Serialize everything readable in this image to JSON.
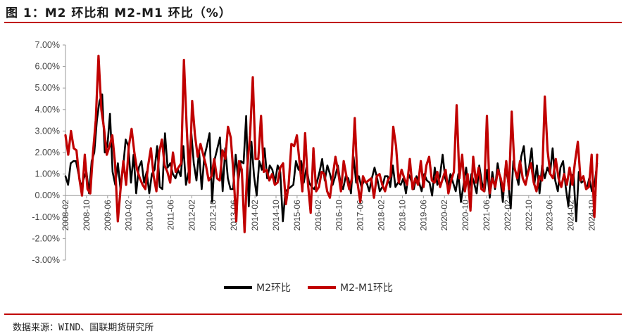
{
  "figure": {
    "title": "图 1：M2 环比和 M2-M1 环比（%）",
    "source": "数据来源：WIND、国联期货研究所"
  },
  "colors": {
    "m2": "#000000",
    "m2m1": "#c00000",
    "accent": "#c00000"
  },
  "chart_data": {
    "type": "line",
    "ylim": [
      -3,
      7
    ],
    "yticks": [
      "7.00%",
      "6.00%",
      "5.00%",
      "4.00%",
      "3.00%",
      "2.00%",
      "1.00%",
      "0.00%",
      "-1.00%",
      "-2.00%",
      "-3.00%"
    ],
    "ytick_values": [
      7,
      6,
      5,
      4,
      3,
      2,
      1,
      0,
      -1,
      -2,
      -3
    ],
    "xticks": [
      "2008-02",
      "2008-10",
      "2009-06",
      "2010-02",
      "2010-10",
      "2011-06",
      "2012-02",
      "2012-10",
      "2013-06",
      "2014-02",
      "2014-10",
      "2015-06",
      "2016-02",
      "2016-10",
      "2017-06",
      "2018-02",
      "2018-10",
      "2019-06",
      "2020-02",
      "2020-10",
      "2021-06",
      "2022-02",
      "2022-10",
      "2023-06",
      "2024-02",
      "2024-10"
    ],
    "x_start": "2008-02",
    "x_end": "2024-12",
    "legend_position": "bottom",
    "grid": false,
    "series": [
      {
        "name": "M2环比",
        "color": "#000000",
        "values": [
          0.9,
          0.5,
          1.5,
          1.6,
          1.6,
          1.0,
          0.4,
          0.8,
          1.1,
          0.1,
          1.6,
          2.0,
          3.5,
          4.4,
          4.7,
          2.0,
          2.3,
          3.8,
          1.1,
          0.5,
          1.5,
          0.3,
          1.3,
          2.6,
          2.3,
          0.6,
          1.9,
          0.1,
          1.3,
          1.6,
          0.6,
          1.1,
          0.1,
          1.0,
          1.2,
          2.3,
          0.4,
          0.3,
          2.9,
          1.3,
          1.5,
          1.0,
          0.8,
          1.2,
          0.9,
          2.3,
          0.5,
          1.1,
          3.0,
          1.5,
          0.7,
          2.1,
          0.3,
          1.8,
          2.3,
          2.9,
          -0.3,
          1.7,
          2.2,
          2.7,
          0.2,
          2.2,
          0.8,
          0.3,
          0.3,
          1.9,
          0.7,
          1.6,
          1.5,
          3.7,
          -0.5,
          2.5,
          0.9,
          0.0,
          1.6,
          1.2,
          2.2,
          0.8,
          1.4,
          1.2,
          0.6,
          1.4,
          1.1,
          -1.2,
          0.2,
          0.3,
          0.4,
          0.5,
          1.6,
          1.2,
          1.6,
          0.6,
          1.3,
          0.6,
          0.4,
          0.3,
          0.6,
          1.1,
          1.7,
          0.7,
          1.4,
          1.0,
          0.5,
          0.9,
          1.4,
          0.6,
          0.3,
          0.9,
          0.8,
          0.1,
          1.8,
          0.6,
          0.9,
          0.4,
          0.7,
          0.6,
          0.2,
          0.8,
          1.3,
          0.8,
          0.2,
          0.4,
          0.9,
          0.9,
          0.4,
          1.4,
          0.4,
          0.6,
          0.5,
          0.8,
          0.1,
          1.0,
          0.7,
          0.3,
          0.9,
          0.6,
          0.2,
          1.0,
          0.7,
          0.6,
          0.0,
          1.3,
          0.5,
          0.9,
          1.9,
          0.8,
          0.4,
          1.0,
          0.6,
          0.2,
          1.0,
          -0.3,
          0.5,
          1.3,
          0.2,
          1.0,
          0.6,
          0.1,
          1.4,
          0.6,
          0.2,
          1.2,
          -0.1,
          1.1,
          0.3,
          1.5,
          0.8,
          -0.3,
          1.3,
          0.7,
          -0.6,
          1.6,
          1.0,
          0.5,
          1.8,
          2.3,
          0.9,
          1.3,
          2.2,
          0.5,
          1.4,
          0.1,
          1.4,
          0.8,
          1.3,
          1.0,
          2.2,
          0.7,
          0.2,
          1.3,
          1.6,
          0.4,
          -0.5,
          0.9,
          1.0,
          -1.2,
          1.1,
          0.6,
          0.7,
          0.3,
          0.8,
          0.2,
          0.5,
          1.5
        ]
      },
      {
        "name": "M2-M1环比",
        "color": "#c00000",
        "values": [
          2.8,
          1.9,
          3.0,
          2.2,
          2.1,
          0.8,
          0.0,
          1.9,
          0.3,
          0.1,
          2.0,
          3.5,
          6.5,
          4.0,
          3.1,
          1.9,
          2.3,
          2.8,
          1.5,
          -1.2,
          0.3,
          1.6,
          0.5,
          2.3,
          3.1,
          2.0,
          1.2,
          0.8,
          0.5,
          0.3,
          1.4,
          2.2,
          0.9,
          0.2,
          2.0,
          2.6,
          1.4,
          1.1,
          0.6,
          2.0,
          1.1,
          1.3,
          1.5,
          6.3,
          3.2,
          0.6,
          4.4,
          2.8,
          1.8,
          2.4,
          1.9,
          1.4,
          0.7,
          0.9,
          1.7,
          0.8,
          0.7,
          2.1,
          1.7,
          3.2,
          2.7,
          1.0,
          -1.2,
          1.6,
          1.2,
          -1.7,
          1.3,
          2.8,
          5.5,
          1.7,
          1.7,
          3.7,
          1.1,
          1.2,
          0.7,
          1.0,
          0.5,
          0.6,
          1.3,
          1.5,
          -0.4,
          0.5,
          2.4,
          2.3,
          2.8,
          1.5,
          0.2,
          2.9,
          0.6,
          -0.8,
          2.2,
          0.2,
          0.4,
          1.1,
          1.0,
          0.2,
          -0.1,
          0.9,
          1.8,
          1.1,
          0.2,
          1.6,
          0.9,
          0.3,
          0.8,
          3.6,
          0.6,
          -0.3,
          0.9,
          0.6,
          0.7,
          0.8,
          -0.1,
          0.9,
          1.0,
          0.5,
          0.2,
          0.7,
          0.9,
          3.2,
          2.3,
          0.6,
          1.2,
          0.8,
          0.5,
          1.7,
          0.3,
          0.8,
          0.5,
          1.6,
          0.4,
          1.4,
          1.8,
          0.7,
          0.6,
          1.1,
          0.4,
          0.8,
          1.2,
          0.1,
          0.7,
          1.1,
          4.2,
          0.8,
          1.9,
          0.2,
          1.0,
          -0.7,
          1.8,
          0.6,
          1.3,
          0.3,
          0.2,
          3.7,
          0.1,
          0.8,
          0.4,
          1.2,
          0.8,
          0.2,
          1.6,
          0.3,
          3.9,
          1.3,
          0.8,
          1.6,
          0.8,
          0.5,
          1.1,
          1.5,
          0.6,
          0.2,
          0.9,
          0.7,
          4.6,
          2.1,
          1.0,
          0.8,
          1.7,
          0.8,
          0.4,
          1.0,
          0.5,
          1.3,
          0.5,
          1.6,
          2.5,
          0.7,
          0.9,
          0.3,
          0.4,
          1.9,
          -1.0,
          1.9
        ]
      }
    ]
  }
}
